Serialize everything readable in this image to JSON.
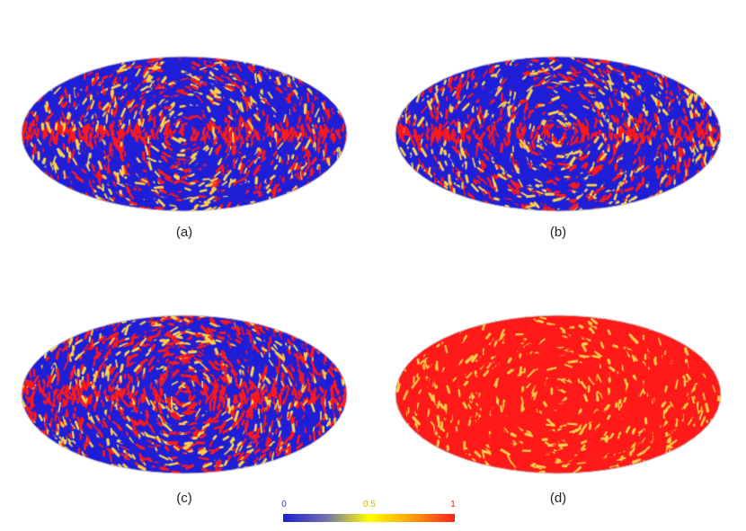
{
  "panels": [
    {
      "label": "(a)",
      "red_level": 0.25,
      "band": true
    },
    {
      "label": "(b)",
      "red_level": 0.25,
      "band": true
    },
    {
      "label": "(c)",
      "red_level": 0.35,
      "band": true
    },
    {
      "label": "(d)",
      "red_level": 0.82,
      "band": false
    }
  ],
  "colorbar": {
    "ticks": [
      "0",
      "0.5",
      "1"
    ],
    "tick_colors": [
      "#3a3ad0",
      "#d4b400",
      "#e02020"
    ],
    "stops": [
      "#1f1fd0",
      "#7070b0",
      "#ffff00",
      "#ffa000",
      "#ff2020"
    ]
  },
  "colors": {
    "blue": "#1f1fd8",
    "yellow": "#ffd24a",
    "red": "#ff1a1a"
  }
}
